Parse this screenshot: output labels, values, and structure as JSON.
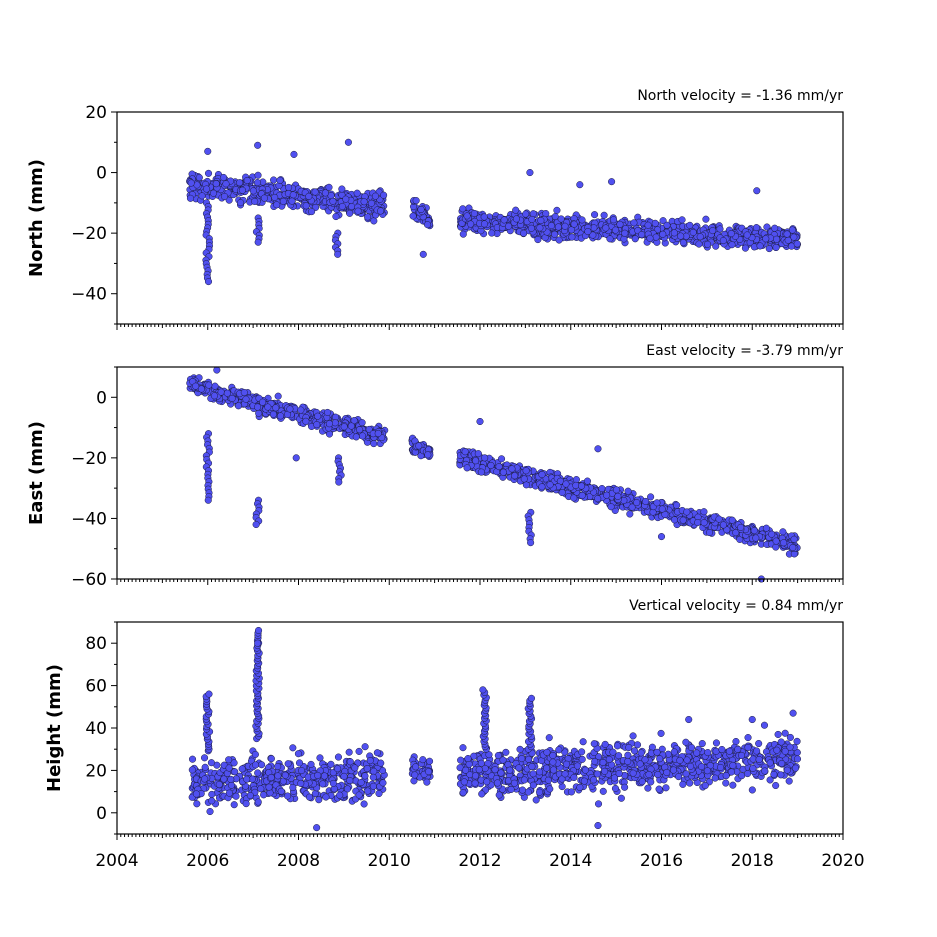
{
  "chart_data": [
    {
      "type": "scatter",
      "ylabel": "North (mm)",
      "annotation": "North velocity = -1.36 mm/yr",
      "ylim": [
        -50,
        20
      ],
      "yticks": [
        20,
        0,
        -20,
        -40
      ],
      "xlim": [
        2004,
        2020
      ],
      "marker_color": "#5050f0",
      "trend": {
        "velocity_mm_per_yr": -1.36
      },
      "series": [
        {
          "segments": [
            {
              "x": [
                2005.6,
                2009.9
              ],
              "y": [
                -4,
                -11
              ],
              "spread": 3.5
            },
            {
              "x": [
                2010.5,
                2010.9
              ],
              "y": [
                -12,
                -16
              ],
              "spread": 2.5
            },
            {
              "x": [
                2011.55,
                2019.0
              ],
              "y": [
                -16,
                -22
              ],
              "spread": 3
            }
          ]
        }
      ],
      "outliers": [
        {
          "x": [
            2006.0,
            2006.0
          ],
          "y": [
            -10,
            -36
          ]
        },
        {
          "x": [
            2007.1,
            2007.1
          ],
          "y": [
            -15,
            -23
          ]
        },
        {
          "x": [
            2008.85,
            2008.85
          ],
          "y": [
            -20,
            -27
          ]
        }
      ],
      "singles": [
        {
          "x": 2009.1,
          "y": 10
        },
        {
          "x": 2007.1,
          "y": 9
        },
        {
          "x": 2006.0,
          "y": 7
        },
        {
          "x": 2007.9,
          "y": 6
        },
        {
          "x": 2010.75,
          "y": -27
        },
        {
          "x": 2013.1,
          "y": 0
        },
        {
          "x": 2014.2,
          "y": -4
        },
        {
          "x": 2014.9,
          "y": -3
        },
        {
          "x": 2018.1,
          "y": -6
        }
      ]
    },
    {
      "type": "scatter",
      "ylabel": "East (mm)",
      "annotation": "East velocity = -3.79 mm/yr",
      "ylim": [
        -60,
        10
      ],
      "yticks": [
        0,
        -20,
        -40,
        -60
      ],
      "xlim": [
        2004,
        2020
      ],
      "marker_color": "#5050f0",
      "trend": {
        "velocity_mm_per_yr": -3.79
      },
      "series": [
        {
          "segments": [
            {
              "x": [
                2005.6,
                2009.9
              ],
              "y": [
                4,
                -13
              ],
              "spread": 2.5
            },
            {
              "x": [
                2010.5,
                2010.9
              ],
              "y": [
                -16,
                -18
              ],
              "spread": 2
            },
            {
              "x": [
                2011.55,
                2019.0
              ],
              "y": [
                -20,
                -49
              ],
              "spread": 2.5
            }
          ]
        }
      ],
      "outliers": [
        {
          "x": [
            2006.0,
            2006.0
          ],
          "y": [
            -12,
            -34
          ]
        },
        {
          "x": [
            2007.1,
            2007.1
          ],
          "y": [
            -34,
            -42
          ]
        },
        {
          "x": [
            2008.9,
            2008.9
          ],
          "y": [
            -20,
            -28
          ]
        },
        {
          "x": [
            2013.1,
            2013.1
          ],
          "y": [
            -38,
            -48
          ]
        }
      ],
      "singles": [
        {
          "x": 2006.2,
          "y": 9
        },
        {
          "x": 2007.95,
          "y": -20
        },
        {
          "x": 2012.0,
          "y": -8
        },
        {
          "x": 2014.6,
          "y": -17
        },
        {
          "x": 2018.2,
          "y": -60
        },
        {
          "x": 2016.0,
          "y": -46
        }
      ]
    },
    {
      "type": "scatter",
      "ylabel": "Height (mm)",
      "annotation": "Vertical velocity = 0.84 mm/yr",
      "ylim": [
        -10,
        90
      ],
      "yticks": [
        80,
        60,
        40,
        20,
        0
      ],
      "xlim": [
        2004,
        2020
      ],
      "xticks": [
        2004,
        2006,
        2008,
        2010,
        2012,
        2014,
        2016,
        2018,
        2020
      ],
      "marker_color": "#5050f0",
      "trend": {
        "velocity_mm_per_yr": 0.84
      },
      "series": [
        {
          "segments": [
            {
              "x": [
                2005.6,
                2009.9
              ],
              "y": [
                14,
                18
              ],
              "spread": 9
            },
            {
              "x": [
                2010.5,
                2010.9
              ],
              "y": [
                20,
                21
              ],
              "spread": 6
            },
            {
              "x": [
                2011.55,
                2019.0
              ],
              "y": [
                18,
                26
              ],
              "spread": 9
            }
          ]
        }
      ],
      "outliers": [
        {
          "x": [
            2007.1,
            2007.1
          ],
          "y": [
            35,
            86
          ]
        },
        {
          "x": [
            2006.0,
            2006.0
          ],
          "y": [
            30,
            56
          ]
        },
        {
          "x": [
            2012.1,
            2012.1
          ],
          "y": [
            30,
            58
          ]
        },
        {
          "x": [
            2013.1,
            2013.1
          ],
          "y": [
            30,
            54
          ]
        }
      ],
      "singles": [
        {
          "x": 2007.1,
          "y": 80
        },
        {
          "x": 2014.6,
          "y": -6
        },
        {
          "x": 2008.4,
          "y": -7
        },
        {
          "x": 2018.0,
          "y": 44
        },
        {
          "x": 2016.6,
          "y": 44
        },
        {
          "x": 2018.9,
          "y": 47
        }
      ]
    }
  ]
}
